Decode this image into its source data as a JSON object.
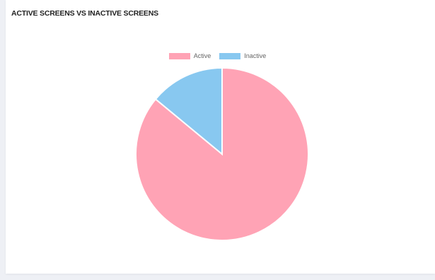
{
  "card": {
    "title": "ACTIVE SCREENS VS INACTIVE SCREENS"
  },
  "chart_data": {
    "type": "pie",
    "title": "ACTIVE SCREENS VS INACTIVE SCREENS",
    "categories": [
      "Active",
      "Inactive"
    ],
    "values": [
      86,
      14
    ],
    "colors": [
      "#ffa3b5",
      "#88c8f0"
    ],
    "legend": {
      "position": "top",
      "entries": [
        {
          "label": "Active",
          "color": "#ffa3b5"
        },
        {
          "label": "Inactive",
          "color": "#88c8f0"
        }
      ]
    }
  }
}
